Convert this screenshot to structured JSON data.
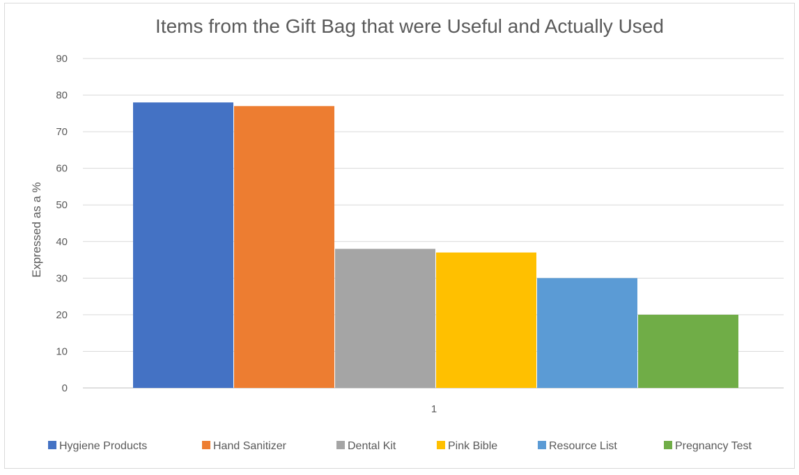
{
  "chart_data": {
    "type": "bar",
    "title": "Items from the Gift Bag that were Useful and Actually Used",
    "ylabel": "Expressed as a %",
    "xlabel": "",
    "ylim": [
      0,
      90
    ],
    "yticks": [
      0,
      10,
      20,
      30,
      40,
      50,
      60,
      70,
      80,
      90
    ],
    "categories": [
      "1"
    ],
    "grid": true,
    "legend_position": "bottom",
    "series": [
      {
        "name": "Hygiene Products",
        "values": [
          78
        ],
        "color": "#4472C4"
      },
      {
        "name": "Hand Sanitizer",
        "values": [
          77
        ],
        "color": "#ED7D31"
      },
      {
        "name": "Dental Kit",
        "values": [
          38
        ],
        "color": "#A5A5A5"
      },
      {
        "name": "Pink Bible",
        "values": [
          37
        ],
        "color": "#FFC000"
      },
      {
        "name": "Resource List",
        "values": [
          30
        ],
        "color": "#5B9BD5"
      },
      {
        "name": "Pregnancy Test",
        "values": [
          20
        ],
        "color": "#70AD47"
      }
    ]
  }
}
